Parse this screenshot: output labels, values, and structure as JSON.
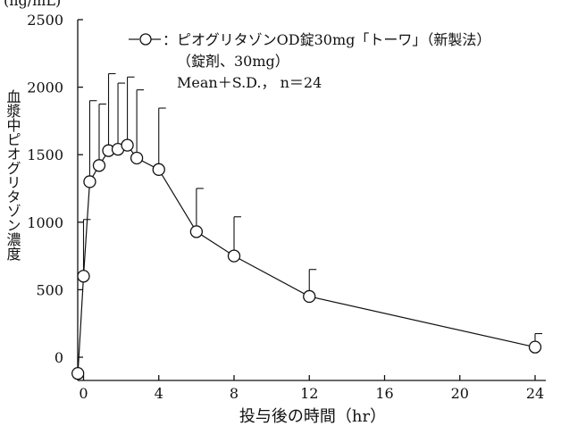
{
  "chart_data": {
    "type": "line",
    "ylabel_top": "(ng/mL)",
    "ylabel": "血漿中ピオグリタゾン濃度",
    "xlabel": "投与後の時間（hr）",
    "xticks": [
      0,
      4,
      8,
      12,
      16,
      20,
      24
    ],
    "yticks": [
      0,
      500,
      1000,
      1500,
      2000,
      2500
    ],
    "xlim": [
      -0.3,
      24.5
    ],
    "ylim": [
      -120,
      2500
    ],
    "legend": {
      "marker_label": "：ピオグリタゾンOD錠30mg「トーワ」（新製法）",
      "line2": "（錠剤、30mg）",
      "line3": "Mean＋S.D.， n＝24"
    },
    "series": [
      {
        "x": [
          -0.3,
          0,
          0.33,
          0.83,
          1.33,
          1.83,
          2.33,
          2.83,
          4,
          6,
          8,
          12,
          24
        ],
        "values": [
          -120,
          600,
          1300,
          1420,
          1530,
          1540,
          1570,
          1475,
          1390,
          930,
          750,
          450,
          75
        ],
        "sd_upper": [
          null,
          1020,
          1900,
          1875,
          2100,
          2030,
          2075,
          1980,
          1845,
          1250,
          1040,
          650,
          175
        ]
      }
    ]
  }
}
